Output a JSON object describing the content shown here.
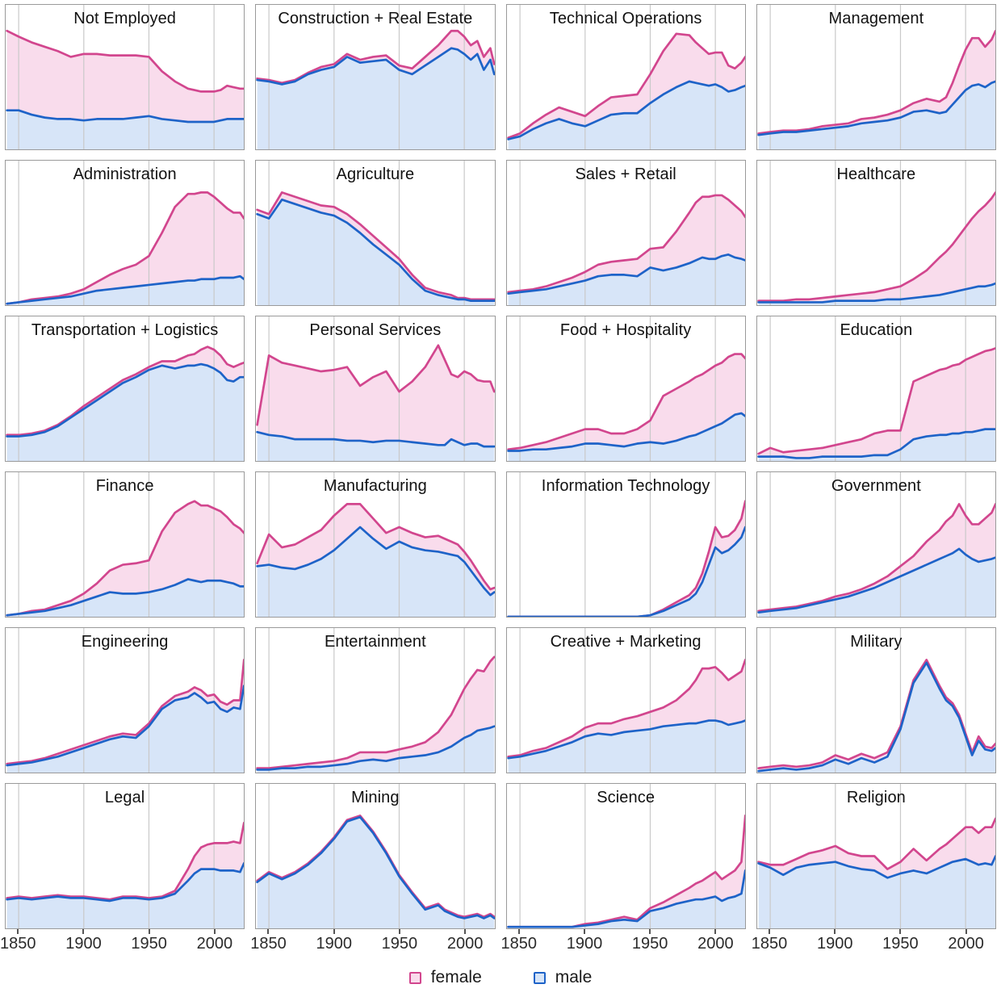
{
  "legend": {
    "female_label": "female",
    "male_label": "male"
  },
  "colors": {
    "female_line": "#d2468e",
    "female_fill": "#f9dcec",
    "male_line": "#1e63c8",
    "male_fill": "#d7e5f8",
    "gridline": "#c9c9c9",
    "panel_border": "#9a9a9a"
  },
  "x_axis": {
    "domain": [
      1840,
      2023
    ],
    "ticks": [
      1850,
      1900,
      1950,
      2000
    ]
  },
  "chart_data": {
    "type": "area",
    "subtype": "stacked-area-small-multiples",
    "note": "6x4 grid of stacked area charts; female band stacked on top of male; values are % of shared y-axis max (estimated from pixels)",
    "legend_entries": [
      "female",
      "male"
    ],
    "legend_position": "bottom-center",
    "grid": "vertical-only",
    "ylim": [
      0,
      100
    ],
    "x": [
      1841,
      1850,
      1860,
      1870,
      1880,
      1890,
      1900,
      1910,
      1920,
      1930,
      1940,
      1950,
      1960,
      1970,
      1980,
      1985,
      1990,
      1995,
      2000,
      2005,
      2010,
      2015,
      2020,
      2023
    ],
    "panels": [
      {
        "title": "Not Employed",
        "male": [
          27,
          27,
          24,
          22,
          21,
          21,
          20,
          21,
          21,
          21,
          22,
          23,
          21,
          20,
          19,
          19,
          19,
          19,
          19,
          20,
          21,
          21,
          21,
          21
        ],
        "female": [
          55,
          51,
          50,
          49,
          47,
          43,
          46,
          45,
          44,
          44,
          43,
          41,
          33,
          27,
          23,
          22,
          21,
          21,
          21,
          21,
          23,
          22,
          21,
          21
        ]
      },
      {
        "title": "Construction + Real Estate",
        "male": [
          48,
          47,
          45,
          47,
          52,
          55,
          57,
          64,
          60,
          61,
          62,
          55,
          52,
          58,
          64,
          67,
          70,
          69,
          66,
          62,
          66,
          55,
          62,
          52
        ],
        "female": [
          1,
          1,
          1,
          1,
          1,
          2,
          2,
          2,
          2,
          3,
          3,
          3,
          4,
          6,
          8,
          10,
          12,
          13,
          12,
          10,
          9,
          9,
          8,
          7
        ]
      },
      {
        "title": "Technical Operations",
        "male": [
          7,
          9,
          14,
          18,
          21,
          18,
          16,
          20,
          24,
          25,
          25,
          32,
          38,
          43,
          47,
          46,
          45,
          44,
          45,
          43,
          40,
          41,
          43,
          44
        ],
        "female": [
          1,
          2,
          4,
          6,
          8,
          8,
          7,
          10,
          12,
          12,
          13,
          20,
          30,
          37,
          32,
          28,
          25,
          22,
          22,
          24,
          18,
          15,
          17,
          20
        ]
      },
      {
        "title": "Management",
        "male": [
          10,
          11,
          12,
          12,
          13,
          14,
          15,
          16,
          18,
          19,
          20,
          22,
          26,
          27,
          25,
          26,
          31,
          36,
          41,
          44,
          45,
          43,
          46,
          47
        ],
        "female": [
          1,
          1,
          1,
          1,
          1,
          2,
          2,
          2,
          3,
          3,
          4,
          5,
          6,
          8,
          8,
          10,
          15,
          22,
          28,
          33,
          32,
          28,
          30,
          35
        ]
      },
      {
        "title": "Administration",
        "male": [
          1,
          2,
          3,
          4,
          5,
          6,
          8,
          10,
          11,
          12,
          13,
          14,
          15,
          16,
          17,
          17,
          18,
          18,
          18,
          19,
          19,
          19,
          20,
          18
        ],
        "female": [
          0,
          0,
          1,
          1,
          1,
          2,
          3,
          6,
          10,
          13,
          15,
          20,
          35,
          52,
          60,
          60,
          60,
          60,
          57,
          52,
          48,
          45,
          44,
          42
        ]
      },
      {
        "title": "Agriculture",
        "male": [
          63,
          60,
          73,
          70,
          67,
          64,
          62,
          57,
          50,
          42,
          35,
          28,
          18,
          10,
          7,
          6,
          5,
          4,
          4,
          3,
          3,
          3,
          3,
          3
        ],
        "female": [
          3,
          3,
          5,
          5,
          5,
          5,
          6,
          6,
          6,
          6,
          5,
          4,
          3,
          2,
          2,
          2,
          2,
          1,
          1,
          1,
          1,
          1,
          1,
          1
        ]
      },
      {
        "title": "Sales + Retail",
        "male": [
          8,
          9,
          10,
          11,
          13,
          15,
          17,
          20,
          21,
          21,
          20,
          26,
          24,
          26,
          29,
          31,
          33,
          32,
          32,
          34,
          35,
          33,
          32,
          31
        ],
        "female": [
          1,
          1,
          1,
          2,
          3,
          4,
          6,
          8,
          9,
          10,
          12,
          13,
          16,
          25,
          35,
          40,
          42,
          43,
          44,
          42,
          38,
          36,
          33,
          30
        ]
      },
      {
        "title": "Healthcare",
        "male": [
          2,
          2,
          2,
          2,
          2,
          2,
          3,
          3,
          3,
          3,
          4,
          4,
          5,
          6,
          7,
          8,
          9,
          10,
          11,
          12,
          13,
          13,
          14,
          15
        ],
        "female": [
          1,
          1,
          1,
          2,
          2,
          3,
          3,
          4,
          5,
          6,
          7,
          9,
          13,
          18,
          26,
          29,
          33,
          38,
          43,
          48,
          52,
          56,
          60,
          63
        ]
      },
      {
        "title": "Transportation + Logistics",
        "male": [
          17,
          17,
          18,
          20,
          24,
          30,
          36,
          42,
          48,
          54,
          58,
          63,
          66,
          64,
          66,
          66,
          67,
          66,
          64,
          61,
          56,
          55,
          58,
          58
        ],
        "female": [
          1,
          1,
          1,
          1,
          1,
          1,
          2,
          2,
          2,
          2,
          2,
          2,
          3,
          5,
          7,
          8,
          10,
          13,
          13,
          12,
          11,
          10,
          9,
          10
        ]
      },
      {
        "title": "Personal Services",
        "male": [
          20,
          18,
          17,
          15,
          15,
          15,
          15,
          14,
          14,
          13,
          14,
          14,
          13,
          12,
          11,
          11,
          15,
          13,
          11,
          12,
          12,
          10,
          10,
          10
        ],
        "female": [
          5,
          55,
          51,
          51,
          49,
          47,
          48,
          51,
          38,
          45,
          48,
          34,
          42,
          53,
          69,
          59,
          45,
          45,
          51,
          48,
          44,
          45,
          45,
          38
        ]
      },
      {
        "title": "Food + Hospitality",
        "male": [
          7,
          7,
          8,
          8,
          9,
          10,
          12,
          12,
          11,
          10,
          12,
          13,
          12,
          14,
          17,
          18,
          20,
          22,
          24,
          26,
          29,
          32,
          33,
          31
        ],
        "female": [
          1,
          2,
          3,
          5,
          7,
          9,
          10,
          10,
          8,
          9,
          10,
          15,
          33,
          36,
          38,
          40,
          40,
          41,
          42,
          42,
          43,
          42,
          41,
          40
        ]
      },
      {
        "title": "Education",
        "male": [
          3,
          3,
          3,
          2,
          2,
          3,
          3,
          3,
          3,
          4,
          4,
          8,
          15,
          17,
          18,
          18,
          19,
          19,
          20,
          20,
          21,
          22,
          22,
          22
        ],
        "female": [
          2,
          6,
          3,
          5,
          6,
          6,
          8,
          10,
          12,
          15,
          17,
          13,
          40,
          42,
          45,
          46,
          47,
          48,
          50,
          52,
          53,
          54,
          55,
          56
        ]
      },
      {
        "title": "Finance",
        "male": [
          1,
          2,
          3,
          4,
          6,
          8,
          11,
          14,
          17,
          16,
          16,
          17,
          19,
          22,
          26,
          25,
          24,
          25,
          25,
          25,
          24,
          23,
          21,
          21
        ],
        "female": [
          0,
          0,
          1,
          1,
          2,
          3,
          5,
          9,
          15,
          20,
          21,
          22,
          40,
          50,
          52,
          55,
          53,
          52,
          50,
          48,
          45,
          41,
          40,
          37
        ]
      },
      {
        "title": "Manufacturing",
        "male": [
          35,
          36,
          34,
          33,
          36,
          40,
          46,
          54,
          62,
          54,
          47,
          52,
          48,
          46,
          45,
          44,
          43,
          42,
          38,
          32,
          26,
          20,
          15,
          17
        ],
        "female": [
          2,
          21,
          14,
          17,
          19,
          20,
          24,
          24,
          16,
          14,
          11,
          10,
          10,
          9,
          11,
          10,
          9,
          8,
          7,
          7,
          6,
          5,
          4,
          3
        ]
      },
      {
        "title": "Information Technology",
        "male": [
          0,
          0,
          0,
          0,
          0,
          0,
          0,
          0,
          0,
          0,
          0,
          1,
          4,
          8,
          12,
          16,
          24,
          36,
          48,
          44,
          46,
          50,
          55,
          62
        ],
        "female": [
          0,
          0,
          0,
          0,
          0,
          0,
          0,
          0,
          0,
          0,
          0,
          0,
          1,
          2,
          3,
          4,
          6,
          9,
          14,
          11,
          10,
          10,
          13,
          18
        ]
      },
      {
        "title": "Government",
        "male": [
          3,
          4,
          5,
          6,
          8,
          10,
          12,
          14,
          17,
          20,
          24,
          28,
          32,
          36,
          40,
          42,
          44,
          47,
          43,
          40,
          38,
          39,
          40,
          41
        ],
        "female": [
          1,
          1,
          1,
          1,
          1,
          1,
          2,
          2,
          2,
          3,
          4,
          7,
          10,
          16,
          20,
          24,
          26,
          31,
          27,
          24,
          26,
          29,
          32,
          37
        ]
      },
      {
        "title": "Engineering",
        "male": [
          5,
          6,
          7,
          9,
          11,
          14,
          17,
          20,
          23,
          25,
          24,
          32,
          44,
          50,
          52,
          55,
          52,
          48,
          49,
          44,
          42,
          45,
          44,
          60
        ],
        "female": [
          1,
          1,
          1,
          1,
          2,
          2,
          2,
          2,
          2,
          2,
          2,
          2,
          2,
          3,
          4,
          4,
          5,
          5,
          5,
          5,
          5,
          5,
          6,
          18
        ]
      },
      {
        "title": "Entertainment",
        "male": [
          2,
          2,
          3,
          3,
          4,
          4,
          5,
          6,
          8,
          9,
          8,
          10,
          11,
          12,
          14,
          16,
          18,
          21,
          24,
          26,
          29,
          30,
          31,
          32
        ],
        "female": [
          1,
          1,
          1,
          2,
          2,
          3,
          3,
          4,
          6,
          5,
          6,
          6,
          7,
          9,
          14,
          18,
          22,
          28,
          34,
          39,
          42,
          40,
          46,
          48
        ]
      },
      {
        "title": "Creative + Marketing",
        "male": [
          10,
          11,
          13,
          15,
          18,
          21,
          25,
          27,
          26,
          28,
          29,
          30,
          32,
          33,
          34,
          34,
          35,
          36,
          36,
          35,
          33,
          34,
          35,
          36
        ],
        "female": [
          1,
          1,
          2,
          2,
          3,
          4,
          6,
          7,
          8,
          9,
          10,
          12,
          13,
          17,
          24,
          30,
          37,
          36,
          37,
          34,
          31,
          33,
          35,
          42
        ]
      },
      {
        "title": "Military",
        "male": [
          1,
          2,
          3,
          2,
          3,
          5,
          9,
          6,
          10,
          7,
          11,
          30,
          62,
          76,
          58,
          50,
          46,
          38,
          25,
          12,
          22,
          16,
          15,
          17
        ],
        "female": [
          2,
          2,
          2,
          2,
          2,
          2,
          3,
          3,
          3,
          3,
          3,
          2,
          2,
          2,
          2,
          2,
          2,
          2,
          2,
          2,
          3,
          2,
          2,
          3
        ]
      },
      {
        "title": "Legal",
        "male": [
          20,
          21,
          20,
          21,
          22,
          21,
          21,
          20,
          19,
          21,
          21,
          20,
          21,
          24,
          33,
          38,
          41,
          41,
          41,
          40,
          40,
          40,
          39,
          45
        ],
        "female": [
          1,
          1,
          1,
          1,
          1,
          1,
          1,
          1,
          1,
          1,
          1,
          1,
          1,
          2,
          8,
          12,
          15,
          17,
          18,
          19,
          19,
          20,
          20,
          28
        ]
      },
      {
        "title": "Mining",
        "male": [
          32,
          38,
          34,
          38,
          44,
          52,
          62,
          74,
          77,
          66,
          52,
          36,
          24,
          13,
          16,
          12,
          10,
          8,
          7,
          8,
          9,
          7,
          9,
          7
        ],
        "female": [
          1,
          1,
          1,
          1,
          1,
          1,
          1,
          1,
          1,
          1,
          1,
          1,
          1,
          1,
          1,
          1,
          1,
          1,
          1,
          1,
          1,
          1,
          1,
          1
        ]
      },
      {
        "title": "Science",
        "male": [
          1,
          1,
          1,
          1,
          1,
          1,
          2,
          3,
          5,
          6,
          5,
          12,
          14,
          17,
          19,
          20,
          20,
          21,
          22,
          19,
          21,
          22,
          24,
          40
        ],
        "female": [
          0,
          0,
          0,
          0,
          0,
          0,
          1,
          1,
          1,
          2,
          1,
          2,
          4,
          6,
          9,
          11,
          13,
          15,
          17,
          15,
          16,
          18,
          22,
          38
        ]
      },
      {
        "title": "Religion",
        "male": [
          45,
          42,
          37,
          42,
          44,
          45,
          46,
          43,
          41,
          40,
          35,
          38,
          40,
          38,
          42,
          44,
          46,
          47,
          48,
          46,
          44,
          45,
          44,
          50
        ],
        "female": [
          1,
          2,
          7,
          6,
          8,
          9,
          11,
          9,
          9,
          10,
          6,
          8,
          15,
          9,
          13,
          14,
          16,
          19,
          22,
          24,
          22,
          25,
          26,
          26
        ]
      }
    ]
  }
}
